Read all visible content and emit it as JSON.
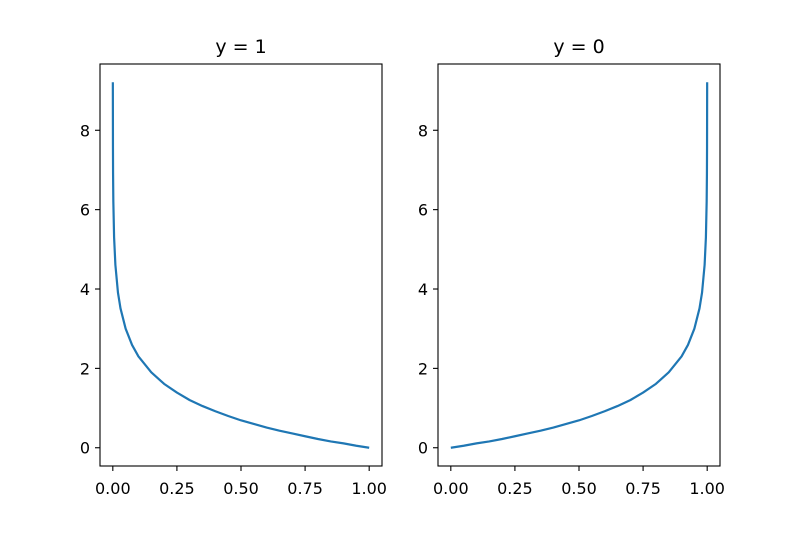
{
  "chart_data": [
    {
      "type": "line",
      "title": "y = 1",
      "xlim": [
        -0.05,
        1.05
      ],
      "ylim": [
        -0.46,
        9.67
      ],
      "x_ticks": [
        "0.00",
        "0.25",
        "0.50",
        "0.75",
        "1.00"
      ],
      "x_tick_values": [
        0,
        0.25,
        0.5,
        0.75,
        1
      ],
      "y_ticks": [
        "0",
        "2",
        "4",
        "6",
        "8"
      ],
      "y_tick_values": [
        0,
        2,
        4,
        6,
        8
      ],
      "grid": false,
      "color": "#1f77b4",
      "series": [
        {
          "x": [
            0.0001,
            0.0005,
            0.001,
            0.002,
            0.005,
            0.01,
            0.02,
            0.03,
            0.05,
            0.075,
            0.1,
            0.15,
            0.2,
            0.25,
            0.3,
            0.35,
            0.4,
            0.45,
            0.5,
            0.55,
            0.6,
            0.65,
            0.7,
            0.75,
            0.8,
            0.85,
            0.9,
            0.95,
            1.0
          ],
          "y": [
            9.21,
            7.6,
            6.91,
            6.21,
            5.3,
            4.61,
            3.91,
            3.51,
            3.0,
            2.59,
            2.3,
            1.9,
            1.61,
            1.39,
            1.2,
            1.05,
            0.92,
            0.8,
            0.69,
            0.6,
            0.51,
            0.43,
            0.36,
            0.29,
            0.22,
            0.16,
            0.11,
            0.05,
            0.0
          ]
        }
      ]
    },
    {
      "type": "line",
      "title": "y = 0",
      "xlim": [
        -0.05,
        1.05
      ],
      "ylim": [
        -0.46,
        9.67
      ],
      "x_ticks": [
        "0.00",
        "0.25",
        "0.50",
        "0.75",
        "1.00"
      ],
      "x_tick_values": [
        0,
        0.25,
        0.5,
        0.75,
        1
      ],
      "y_ticks": [
        "0",
        "2",
        "4",
        "6",
        "8"
      ],
      "y_tick_values": [
        0,
        2,
        4,
        6,
        8
      ],
      "grid": false,
      "color": "#1f77b4",
      "series": [
        {
          "x": [
            0.0,
            0.05,
            0.1,
            0.15,
            0.2,
            0.25,
            0.3,
            0.35,
            0.4,
            0.45,
            0.5,
            0.55,
            0.6,
            0.65,
            0.7,
            0.75,
            0.8,
            0.85,
            0.9,
            0.925,
            0.95,
            0.97,
            0.98,
            0.99,
            0.995,
            0.998,
            0.999,
            0.9995,
            0.9999
          ],
          "y": [
            0.0,
            0.05,
            0.11,
            0.16,
            0.22,
            0.29,
            0.36,
            0.43,
            0.51,
            0.6,
            0.69,
            0.8,
            0.92,
            1.05,
            1.2,
            1.39,
            1.61,
            1.9,
            2.3,
            2.59,
            3.0,
            3.51,
            3.91,
            4.61,
            5.3,
            6.21,
            6.91,
            7.6,
            9.21
          ]
        }
      ]
    }
  ]
}
